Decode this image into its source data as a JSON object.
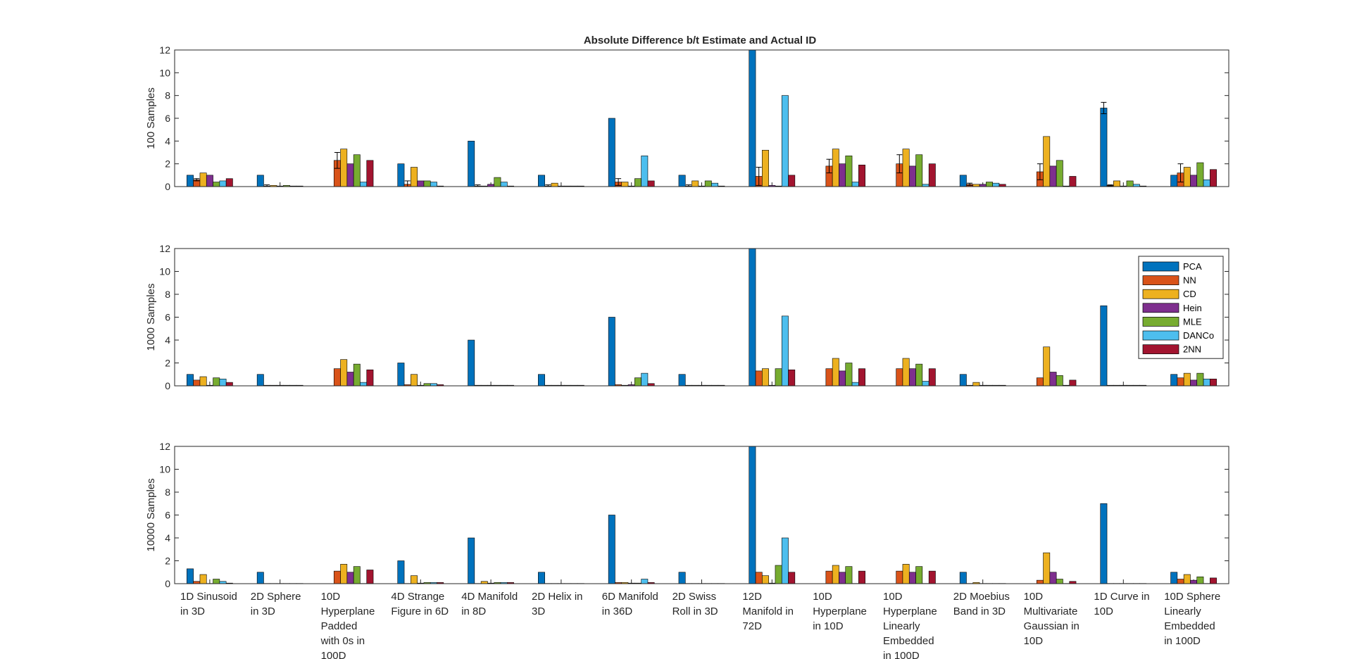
{
  "chart_data": [
    {
      "type": "bar",
      "title": "Absolute Difference b/t Estimate and Actual ID",
      "ylabel": "100 Samples",
      "ylim": [
        0,
        12
      ],
      "yticks": [
        0,
        2,
        4,
        6,
        8,
        10,
        12
      ],
      "categories": [
        "1D Sinusoid in 3D",
        "2D Sphere in 3D",
        "10D Hyperplane Padded with 0s in 100D",
        "4D Strange Figure in 6D",
        "4D Manifold in 8D",
        "2D Helix in 3D",
        "6D Manifold in 36D",
        "2D Swiss Roll in 3D",
        "12D Manifold in 72D",
        "10D Hyperplane in 10D",
        "10D Hyperplane Linearly Embedded in 100D",
        "2D Moebius Band in 3D",
        "10D Multivariate Gaussian in 10D",
        "1D Curve in 10D",
        "10D Sphere Linearly Embedded in 100D"
      ],
      "series": [
        {
          "name": "PCA",
          "values": [
            1,
            1,
            0,
            2,
            4,
            1,
            6,
            1,
            12,
            0,
            0,
            1,
            0,
            6.9,
            1
          ],
          "err": [
            0,
            0,
            0,
            0,
            0,
            0,
            0,
            0,
            0,
            0,
            0,
            0,
            0,
            0.5,
            0
          ]
        },
        {
          "name": "NN",
          "values": [
            0.6,
            0.05,
            2.3,
            0.2,
            0.05,
            0.05,
            0.4,
            0.05,
            0.9,
            1.8,
            2.0,
            0.2,
            1.3,
            0.1,
            1.2
          ],
          "err": [
            0.1,
            0.1,
            0.7,
            0.3,
            0.1,
            0.1,
            0.3,
            0.1,
            0.8,
            0.6,
            0.8,
            0.1,
            0.7,
            0.05,
            0.8
          ]
        },
        {
          "name": "CD",
          "values": [
            1.2,
            0.1,
            3.3,
            1.7,
            0.05,
            0.3,
            0.4,
            0.5,
            3.2,
            3.3,
            3.3,
            0.2,
            4.4,
            0.5,
            1.7
          ]
        },
        {
          "name": "Hein",
          "values": [
            1.0,
            0.05,
            2.0,
            0.5,
            0.2,
            0.05,
            0.05,
            0.05,
            0.1,
            2.0,
            1.8,
            0.2,
            1.8,
            0.05,
            1.0
          ]
        },
        {
          "name": "MLE",
          "values": [
            0.4,
            0.1,
            2.8,
            0.5,
            0.8,
            0.05,
            0.7,
            0.5,
            0.05,
            2.7,
            2.8,
            0.4,
            2.3,
            0.5,
            2.1
          ]
        },
        {
          "name": "DANCo",
          "values": [
            0.5,
            0.05,
            0.4,
            0.4,
            0.4,
            0.05,
            2.7,
            0.3,
            8.0,
            0.4,
            0.2,
            0.3,
            0.05,
            0.2,
            0.6
          ]
        },
        {
          "name": "2NN",
          "values": [
            0.7,
            0.05,
            2.3,
            0.05,
            0.05,
            0.05,
            0.5,
            0.05,
            1.0,
            1.9,
            2.0,
            0.2,
            0.9,
            0.05,
            1.5
          ]
        }
      ]
    },
    {
      "type": "bar",
      "ylabel": "1000 Samples",
      "ylim": [
        0,
        12
      ],
      "yticks": [
        0,
        2,
        4,
        6,
        8,
        10,
        12
      ],
      "categories": [
        "1D Sinusoid in 3D",
        "2D Sphere in 3D",
        "10D Hyperplane Padded with 0s in 100D",
        "4D Strange Figure in 6D",
        "4D Manifold in 8D",
        "2D Helix in 3D",
        "6D Manifold in 36D",
        "2D Swiss Roll in 3D",
        "12D Manifold in 72D",
        "10D Hyperplane in 10D",
        "10D Hyperplane Linearly Embedded in 100D",
        "2D Moebius Band in 3D",
        "10D Multivariate Gaussian in 10D",
        "1D Curve in 10D",
        "10D Sphere Linearly Embedded in 100D"
      ],
      "series": [
        {
          "name": "PCA",
          "values": [
            1.0,
            1,
            0,
            2,
            4,
            1,
            6,
            1,
            12,
            0,
            0,
            1,
            0,
            7,
            1
          ]
        },
        {
          "name": "NN",
          "values": [
            0.5,
            0.05,
            1.5,
            0.1,
            0.05,
            0.05,
            0.1,
            0.05,
            1.3,
            1.5,
            1.5,
            0.05,
            0.7,
            0.05,
            0.7
          ]
        },
        {
          "name": "CD",
          "values": [
            0.8,
            0.05,
            2.3,
            1.0,
            0.05,
            0.05,
            0.05,
            0.05,
            1.5,
            2.4,
            2.4,
            0.3,
            3.4,
            0.05,
            1.1
          ]
        },
        {
          "name": "Hein",
          "values": [
            0.05,
            0.05,
            1.2,
            0.05,
            0.05,
            0.05,
            0.1,
            0.05,
            0.05,
            1.3,
            1.5,
            0.05,
            1.2,
            0.05,
            0.5
          ]
        },
        {
          "name": "MLE",
          "values": [
            0.7,
            0.05,
            1.9,
            0.2,
            0.05,
            0.05,
            0.7,
            0.05,
            1.5,
            2.0,
            1.9,
            0.05,
            0.9,
            0.05,
            1.1
          ]
        },
        {
          "name": "DANCo",
          "values": [
            0.6,
            0.05,
            0.3,
            0.2,
            0.05,
            0.05,
            1.1,
            0.05,
            6.1,
            0.3,
            0.4,
            0.05,
            0.05,
            0.05,
            0.6
          ]
        },
        {
          "name": "2NN",
          "values": [
            0.3,
            0.05,
            1.4,
            0.1,
            0.05,
            0.05,
            0.2,
            0.05,
            1.4,
            1.5,
            1.5,
            0.05,
            0.5,
            0.05,
            0.6
          ]
        }
      ]
    },
    {
      "type": "bar",
      "ylabel": "10000 Samples",
      "ylim": [
        0,
        12
      ],
      "yticks": [
        0,
        2,
        4,
        6,
        8,
        10,
        12
      ],
      "categories": [
        "1D Sinusoid in 3D",
        "2D Sphere in 3D",
        "10D Hyperplane Padded with 0s in 100D",
        "4D Strange Figure in 6D",
        "4D Manifold in 8D",
        "2D Helix in 3D",
        "6D Manifold in 36D",
        "2D Swiss Roll in 3D",
        "12D Manifold in 72D",
        "10D Hyperplane in 10D",
        "10D Hyperplane Linearly Embedded in 100D",
        "2D Moebius Band in 3D",
        "10D Multivariate Gaussian in 10D",
        "1D Curve in 10D",
        "10D Sphere Linearly Embedded in 100D"
      ],
      "series": [
        {
          "name": "PCA",
          "values": [
            1.3,
            1,
            0,
            2,
            4,
            1,
            6,
            1,
            12,
            0,
            0,
            1,
            0,
            7,
            1
          ]
        },
        {
          "name": "NN",
          "values": [
            0.2,
            0.02,
            1.1,
            0.02,
            0.02,
            0.02,
            0.1,
            0.02,
            1.0,
            1.1,
            1.1,
            0.02,
            0.3,
            0.02,
            0.4
          ]
        },
        {
          "name": "CD",
          "values": [
            0.8,
            0.02,
            1.7,
            0.7,
            0.2,
            0.02,
            0.1,
            0.02,
            0.7,
            1.6,
            1.7,
            0.1,
            2.7,
            0.02,
            0.8
          ]
        },
        {
          "name": "Hein",
          "values": [
            0.02,
            0.02,
            1.0,
            0.05,
            0.05,
            0.02,
            0.05,
            0.02,
            0.05,
            1.0,
            1.0,
            0.02,
            1.0,
            0.02,
            0.3
          ]
        },
        {
          "name": "MLE",
          "values": [
            0.4,
            0.02,
            1.5,
            0.1,
            0.1,
            0.02,
            0.05,
            0.02,
            1.6,
            1.5,
            1.5,
            0.02,
            0.4,
            0.02,
            0.6
          ]
        },
        {
          "name": "DANCo",
          "values": [
            0.2,
            0.02,
            0.02,
            0.1,
            0.1,
            0.02,
            0.4,
            0.02,
            4.0,
            0.02,
            0.02,
            0.02,
            0.02,
            0.02,
            0.02
          ]
        },
        {
          "name": "2NN",
          "values": [
            0.05,
            0.02,
            1.2,
            0.1,
            0.1,
            0.02,
            0.1,
            0.02,
            1.0,
            1.1,
            1.1,
            0.02,
            0.2,
            0.02,
            0.5
          ]
        }
      ]
    }
  ],
  "legend": {
    "entries": [
      "PCA",
      "NN",
      "CD",
      "Hein",
      "MLE",
      "DANCo",
      "2NN"
    ],
    "placement": "right of middle panel"
  },
  "category_labels": [
    [
      "1D Sinusoid",
      "in 3D"
    ],
    [
      "2D Sphere",
      "in 3D"
    ],
    [
      "10D",
      "Hyperplane",
      "Padded",
      "with 0s in",
      "100D"
    ],
    [
      "4D Strange",
      "Figure in 6D"
    ],
    [
      "4D Manifold",
      "in 8D"
    ],
    [
      "2D Helix in",
      "3D"
    ],
    [
      "6D Manifold",
      "in 36D"
    ],
    [
      "2D Swiss",
      "Roll in 3D"
    ],
    [
      "12D",
      "Manifold in",
      "72D"
    ],
    [
      "10D",
      "Hyperplane",
      "in 10D"
    ],
    [
      "10D",
      "Hyperplane",
      "Linearly",
      "Embedded",
      "in 100D"
    ],
    [
      "2D Moebius",
      "Band in 3D"
    ],
    [
      "10D",
      "Multivariate",
      "Gaussian in",
      "10D"
    ],
    [
      "1D Curve in",
      "10D"
    ],
    [
      "10D Sphere",
      "Linearly",
      "Embedded",
      "in 100D"
    ]
  ],
  "colors": {
    "PCA": "#0072BD",
    "NN": "#D95319",
    "CD": "#EDB120",
    "Hein": "#7E2F8E",
    "MLE": "#77AC30",
    "DANCo": "#4DBEEE",
    "2NN": "#A2142F"
  }
}
